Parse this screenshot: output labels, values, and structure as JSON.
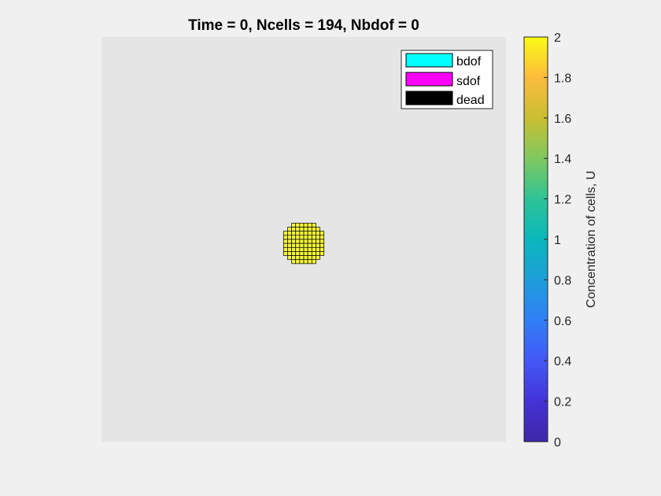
{
  "chart_data": {
    "type": "heatmap",
    "title": "Time = 0, Ncells = 194, Nbdof = 0",
    "grid_size": 100,
    "cells": {
      "value": 2,
      "color": "#f5f53a",
      "edge_color": "#000000",
      "rows": [
        {
          "row": 46,
          "cols": [
            47,
            52
          ]
        },
        {
          "row": 47,
          "cols": [
            46,
            53
          ]
        },
        {
          "row": 48,
          "cols": [
            45,
            54
          ]
        },
        {
          "row": 49,
          "cols": [
            45,
            54
          ]
        },
        {
          "row": 50,
          "cols": [
            45,
            54
          ]
        },
        {
          "row": 51,
          "cols": [
            45,
            54
          ]
        },
        {
          "row": 52,
          "cols": [
            45,
            54
          ]
        },
        {
          "row": 53,
          "cols": [
            45,
            54
          ]
        },
        {
          "row": 54,
          "cols": [
            46,
            53
          ]
        },
        {
          "row": 55,
          "cols": [
            47,
            52
          ]
        }
      ]
    },
    "legend": {
      "placement": "top-right",
      "entries": [
        {
          "label": "bdof",
          "color": "#00ffff"
        },
        {
          "label": "sdof",
          "color": "#ff00ff"
        },
        {
          "label": "dead",
          "color": "#000000"
        }
      ]
    },
    "colorbar": {
      "label": "Concentration of cells, U",
      "range": [
        0,
        2
      ],
      "ticks": [
        "0",
        "0.2",
        "0.4",
        "0.6",
        "0.8",
        "1",
        "1.2",
        "1.4",
        "1.6",
        "1.8",
        "2"
      ],
      "colormap": [
        "#3e26a8",
        "#4433d6",
        "#4358f5",
        "#317ff7",
        "#1e9ed9",
        "#0bb7bc",
        "#2ec395",
        "#80c85f",
        "#c9bf32",
        "#fcbb3d",
        "#f9fb15"
      ]
    },
    "axes_background": "#e5e5e5",
    "grid": false
  }
}
